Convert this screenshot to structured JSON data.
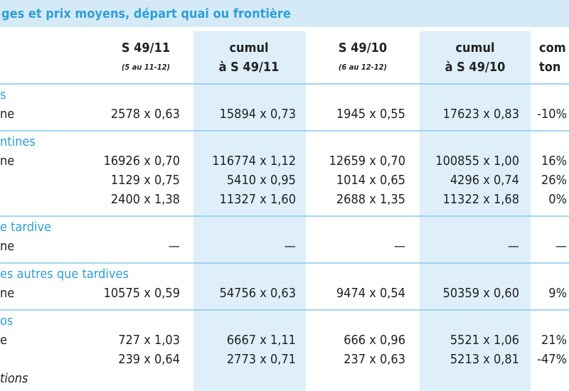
{
  "header": {
    "title": "ges et prix moyens, départ quai ou frontière"
  },
  "table": {
    "columns": [
      {
        "title": "S 49/11",
        "subtitle": "(5 au 11-12)"
      },
      {
        "title": "cumul",
        "subtitle": "à S 49/11"
      },
      {
        "title": "S 49/10",
        "subtitle": "(6 au 12-12)"
      },
      {
        "title": "cumul",
        "subtitle": "à S 49/10"
      },
      {
        "title": "com",
        "subtitle": "ton"
      }
    ],
    "sections": [
      {
        "title": "s",
        "rows": [
          {
            "label": "ne",
            "cells": [
              "2578 x 0,63",
              "15894 x 0,73",
              "1945 x 0,55",
              "17623 x 0,83",
              "-10%"
            ]
          }
        ]
      },
      {
        "title": "ntines",
        "rows": [
          {
            "label": "ne",
            "cells": [
              "16926 x 0,70",
              "116774 x 1,12",
              "12659 x 0,70",
              "100855 x 1,00",
              "16%"
            ]
          },
          {
            "cells": [
              "1129 x 0,75",
              "5410 x 0,95",
              "1014 x 0,65",
              "4296 x 0,74",
              "26%"
            ]
          },
          {
            "cells": [
              "2400 x 1,38",
              "11327 x 1,60",
              "2688 x 1,35",
              "11322 x 1,68",
              "0%"
            ]
          }
        ]
      },
      {
        "title": "e tardive",
        "rows": [
          {
            "label": "ne",
            "cells": [
              "—",
              "—",
              "—",
              "—",
              "—"
            ]
          }
        ]
      },
      {
        "title": "es autres que tardives",
        "rows": [
          {
            "label": "ne",
            "cells": [
              "10575 x 0,59",
              "54756 x 0,63",
              "9474 x 0,54",
              "50359 x 0,60",
              "9%"
            ]
          }
        ]
      },
      {
        "title": "os",
        "rows": [
          {
            "label": "e",
            "cells": [
              "727 x 1,03",
              "6667 x 1,11",
              "666 x 0,96",
              "5521 x 1,06",
              "21%"
            ]
          },
          {
            "cells": [
              "239 x 0,64",
              "2773 x 0,71",
              "237 x 0,63",
              "5213 x 0,81",
              "-47%"
            ]
          },
          {
            "label": "tions",
            "italic": true
          }
        ]
      }
    ]
  }
}
